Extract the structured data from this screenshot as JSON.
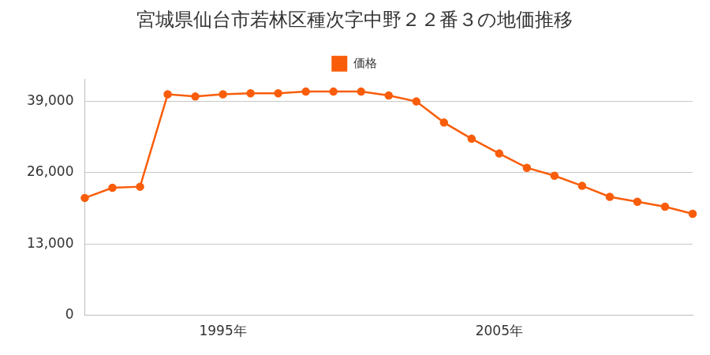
{
  "chart_data": {
    "type": "line",
    "title": "宮城県仙台市若林区種次字中野２２番３の地価推移",
    "categories": [
      null,
      null,
      null,
      null,
      null,
      "1995年",
      null,
      null,
      null,
      null,
      null,
      null,
      null,
      null,
      null,
      "2005年",
      null,
      null,
      null,
      null,
      null,
      null,
      null
    ],
    "series": [
      {
        "name": "価格",
        "color": "#f95d0a",
        "marker": "circle",
        "values": [
          21400,
          23250,
          23450,
          40300,
          39900,
          40300,
          40500,
          40500,
          40800,
          40800,
          40800,
          40100,
          39000,
          35150,
          32200,
          29500,
          26900,
          25450,
          23600,
          21600,
          20700,
          19800,
          18500
        ]
      }
    ],
    "ylim": [
      0,
      43000
    ],
    "yticks": [
      0,
      {
        "value": 13000,
        "label": "13,000"
      },
      {
        "value": 26000,
        "label": "26,000"
      },
      {
        "value": 39000,
        "label": "39,000"
      }
    ],
    "grid": true,
    "legend": "top"
  }
}
